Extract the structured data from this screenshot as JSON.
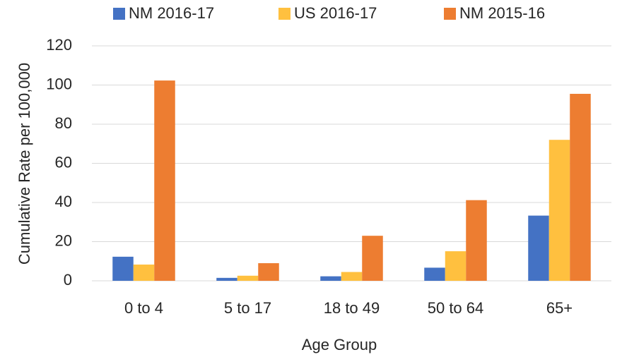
{
  "chart_data": {
    "type": "bar",
    "x_label": "Age Group",
    "y_label": "Cumulative Rate per 100,000",
    "categories": [
      "0 to 4",
      "5 to 17",
      "18 to 49",
      "50 to 64",
      "65+"
    ],
    "series": [
      {
        "name": "NM 2016-17",
        "color": "#4472c4",
        "values": [
          12.3,
          1.5,
          2.3,
          6.7,
          33.3
        ]
      },
      {
        "name": "US 2016-17",
        "color": "#ffc03f",
        "values": [
          8.3,
          2.6,
          4.5,
          15.1,
          72
        ]
      },
      {
        "name": "NM 2015-16",
        "color": "#ed7d31",
        "values": [
          102.3,
          9,
          23,
          41.2,
          95.5
        ]
      }
    ],
    "ylim": [
      0,
      120
    ],
    "yticks": [
      0,
      20,
      40,
      60,
      80,
      100,
      120
    ],
    "grid": true,
    "legend": "top"
  }
}
